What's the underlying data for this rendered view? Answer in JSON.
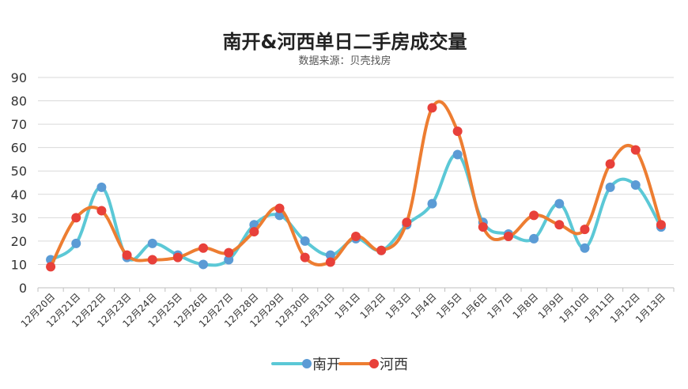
{
  "chart_data": {
    "type": "line",
    "title": "南开&河西单日二手房成交量",
    "subtitle": "数据来源：贝壳找房",
    "xlabel": "",
    "ylabel": "",
    "ylim": [
      0,
      90
    ],
    "yticks": [
      0,
      10,
      20,
      30,
      40,
      50,
      60,
      70,
      80,
      90
    ],
    "grid": true,
    "legend_position": "bottom",
    "categories": [
      "12月20日",
      "12月21日",
      "12月22日",
      "12月23日",
      "12月24日",
      "12月25日",
      "12月26日",
      "12月27日",
      "12月28日",
      "12月29日",
      "12月30日",
      "12月31日",
      "1月1日",
      "1月2日",
      "1月3日",
      "1月4日",
      "1月5日",
      "1月6日",
      "1月7日",
      "1月8日",
      "1月9日",
      "1月10日",
      "1月11日",
      "1月12日",
      "1月13日"
    ],
    "series": [
      {
        "name": "南开",
        "line_color": "#5bc8d6",
        "marker_color": "#5b9bd5",
        "values": [
          12,
          19,
          43,
          13,
          19,
          14,
          10,
          12,
          27,
          31,
          20,
          14,
          21,
          16,
          27,
          36,
          57,
          28,
          23,
          21,
          36,
          17,
          43,
          44,
          26
        ]
      },
      {
        "name": "河西",
        "line_color": "#ed7d31",
        "marker_color": "#e8403a",
        "values": [
          9,
          30,
          33,
          14,
          12,
          13,
          17,
          15,
          24,
          34,
          13,
          11,
          22,
          16,
          28,
          77,
          67,
          26,
          22,
          31,
          27,
          25,
          53,
          59,
          27
        ]
      }
    ]
  }
}
